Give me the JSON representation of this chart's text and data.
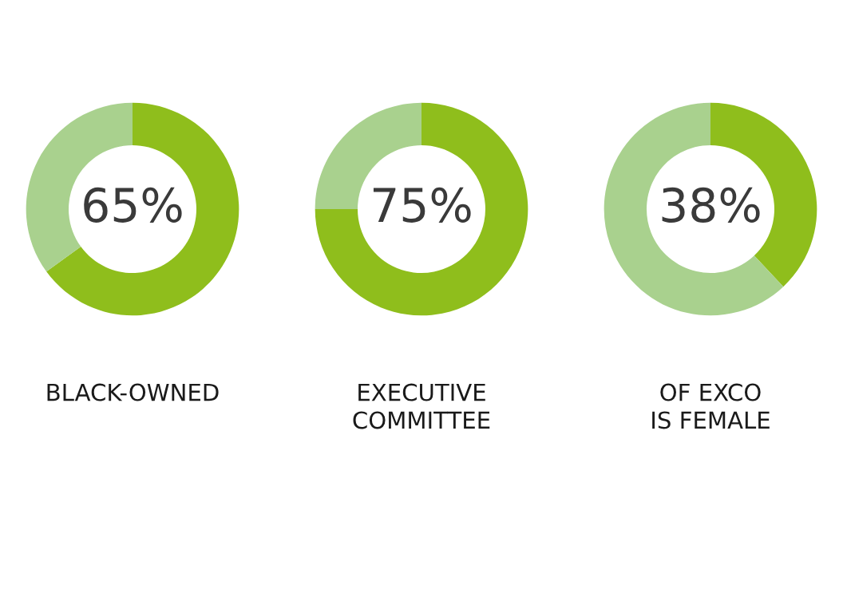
{
  "chart_data": [
    {
      "type": "donut",
      "title": "BLACK-OWNED",
      "categories": [
        null,
        null
      ],
      "values": [
        65,
        35
      ],
      "colors": [
        "#8fbe1c",
        "#a9d18e"
      ],
      "annotations": [
        "65%"
      ]
    },
    {
      "type": "donut",
      "title": "EXECUTIVE\nCOMMITTEE",
      "categories": [
        null,
        null
      ],
      "values": [
        75,
        25
      ],
      "colors": [
        "#8fbe1c",
        "#a9d18e"
      ],
      "annotations": [
        "75%"
      ]
    },
    {
      "type": "donut",
      "title": "OF EXCO\nIS FEMALE",
      "categories": [
        null,
        null
      ],
      "values": [
        38,
        62
      ],
      "colors": [
        "#8fbe1c",
        "#a9d18e"
      ],
      "annotations": [
        "38%"
      ]
    }
  ]
}
